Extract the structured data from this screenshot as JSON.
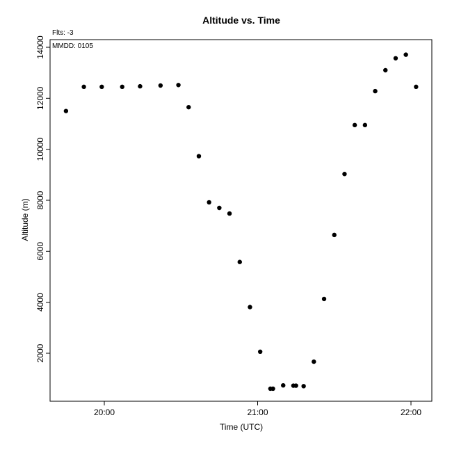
{
  "chart_data": {
    "type": "scatter",
    "title": "Altitude  vs. Time",
    "xlabel": "Time (UTC)",
    "ylabel": "Altitude (m)",
    "annotations": [
      "Flts: -3",
      "MMDD: 0105"
    ],
    "x_ticks": [
      "20:00",
      "21:00",
      "22:00"
    ],
    "y_ticks": [
      "2000",
      "4000",
      "6000",
      "8000",
      "10000",
      "12000",
      "14000"
    ],
    "xlim": [
      "19:40",
      "22:08"
    ],
    "ylim": [
      0,
      14000
    ],
    "grid": false,
    "series": [
      {
        "x": [
          "19:45",
          "19:52",
          "19:59",
          "20:07",
          "20:14",
          "20:22",
          "20:29",
          "20:33",
          "20:37",
          "20:41",
          "20:45",
          "20:49",
          "20:53",
          "20:57",
          "21:01",
          "21:05",
          "21:06",
          "21:10",
          "21:14",
          "21:15",
          "21:18",
          "21:22",
          "21:26",
          "21:30",
          "21:34",
          "21:38",
          "21:42",
          "21:46",
          "21:50",
          "21:54",
          "21:58",
          "22:02"
        ],
        "y": [
          11500,
          12450,
          12450,
          12450,
          12470,
          12500,
          12520,
          11650,
          9730,
          7920,
          7700,
          7480,
          5580,
          3810,
          2060,
          610,
          610,
          740,
          730,
          730,
          710,
          1670,
          4130,
          6640,
          9030,
          10950,
          10950,
          12280,
          13100,
          13570,
          13710,
          12450
        ]
      }
    ]
  }
}
